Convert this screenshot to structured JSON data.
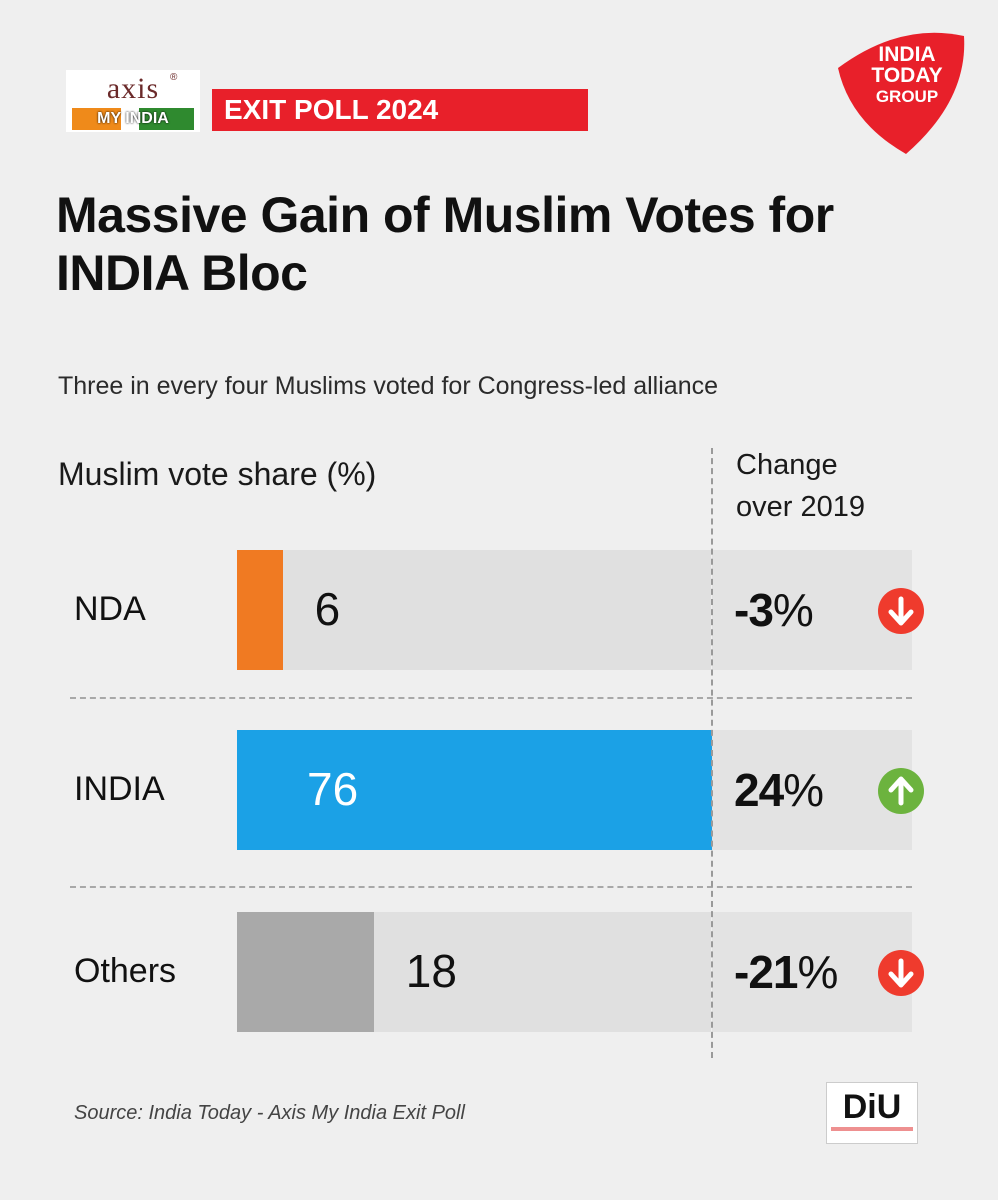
{
  "header": {
    "axis_logo_text": "axis",
    "axis_reg": "®",
    "myindia_text": "MY INDIA",
    "badge": "EXIT POLL 2024",
    "itg_line1": "INDIA",
    "itg_line2": "TODAY",
    "itg_line3": "GROUP",
    "red": "#e8202a"
  },
  "chart_data": {
    "type": "bar",
    "orientation": "horizontal",
    "title": "Massive Gain of Muslim Votes for INDIA Bloc",
    "subtitle": "Three in every four Muslims voted for Congress-led alliance",
    "xlabel": "Muslim vote share (%)",
    "change_label": "Change over 2019",
    "change_label_line1": "Change",
    "change_label_line2": "over 2019",
    "categories": [
      "NDA",
      "INDIA",
      "Others"
    ],
    "values": [
      6,
      76,
      18
    ],
    "value_labels": [
      "6",
      "76",
      "18"
    ],
    "change": [
      "-3%",
      "24%",
      "-21%"
    ],
    "change_direction": [
      "down",
      "up",
      "down"
    ],
    "xlim": [
      0,
      100
    ],
    "colors": [
      "#f07a22",
      "#1ba1e6",
      "#a9a9a9"
    ],
    "arrow_colors": {
      "down": "#ef3b2d",
      "up": "#6cb33e"
    },
    "grid": false
  },
  "footer": {
    "source": "Source: India Today - Axis My India Exit Poll",
    "diu_logo": "DiU"
  }
}
